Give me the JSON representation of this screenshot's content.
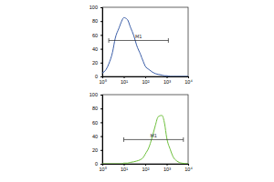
{
  "chart_data": [
    {
      "type": "line",
      "log": "x",
      "color": "#3b5ea8",
      "x": [
        1,
        1.5,
        2,
        3,
        4,
        6,
        8,
        10,
        15,
        20,
        30,
        40,
        60,
        80,
        100,
        150,
        200,
        300,
        400,
        600,
        800,
        1000,
        1500,
        2000,
        3000,
        5000,
        10000
      ],
      "values": [
        5,
        10,
        18,
        35,
        55,
        70,
        80,
        85,
        82,
        72,
        58,
        45,
        32,
        22,
        15,
        10,
        7,
        4,
        3,
        2,
        1,
        1,
        0,
        0,
        0,
        0,
        0
      ],
      "xlim": [
        1,
        10000
      ],
      "xticks": [
        {
          "value": 1,
          "label": "10⁰"
        },
        {
          "value": 10,
          "label": "10¹"
        },
        {
          "value": 100,
          "label": "10²"
        },
        {
          "value": 1000,
          "label": "10³"
        },
        {
          "value": 10000,
          "label": "10⁴"
        }
      ],
      "ylim": [
        0,
        100
      ],
      "yticks": [
        0,
        20,
        40,
        60,
        80,
        100
      ],
      "gate": {
        "label": "M1",
        "x": [
          2,
          1200
        ],
        "y": 52
      }
    },
    {
      "type": "line",
      "log": "x",
      "color": "#6cbf3a",
      "x": [
        1,
        1.5,
        2,
        3,
        4,
        6,
        8,
        10,
        15,
        20,
        30,
        40,
        60,
        80,
        100,
        150,
        200,
        300,
        400,
        600,
        800,
        1000,
        1500,
        2000,
        3000,
        5000,
        10000
      ],
      "values": [
        0,
        0,
        0,
        0,
        0,
        0,
        0,
        1,
        1,
        2,
        3,
        4,
        6,
        9,
        14,
        24,
        36,
        56,
        68,
        70,
        58,
        38,
        20,
        10,
        4,
        1,
        0
      ],
      "xlim": [
        1,
        10000
      ],
      "xticks": [
        {
          "value": 1,
          "label": "10⁰"
        },
        {
          "value": 10,
          "label": "10¹"
        },
        {
          "value": 100,
          "label": "10²"
        },
        {
          "value": 1000,
          "label": "10³"
        },
        {
          "value": 10000,
          "label": "10⁴"
        }
      ],
      "ylim": [
        0,
        100
      ],
      "yticks": [
        0,
        20,
        40,
        60,
        80,
        100
      ],
      "gate": {
        "label": "M1",
        "x": [
          10,
          6000
        ],
        "y": 35
      }
    }
  ]
}
